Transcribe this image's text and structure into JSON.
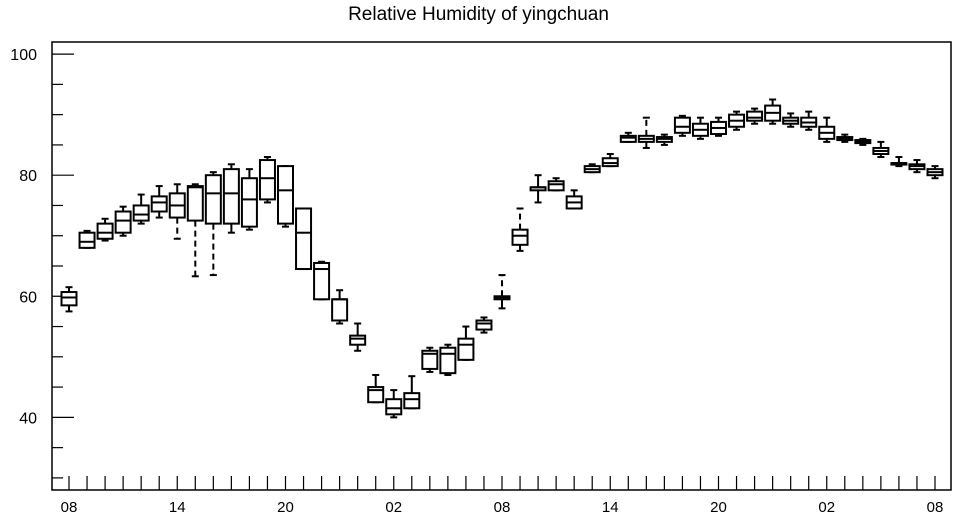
{
  "chart_data": {
    "type": "boxplot",
    "title": "Relative Humidity of yingchuan",
    "xlabel": "",
    "ylabel": "",
    "ylim": [
      28,
      102
    ],
    "y_ticks": [
      40,
      60,
      80,
      100
    ],
    "x_tick_labels": [
      "08",
      "14",
      "20",
      "02",
      "08",
      "14",
      "20",
      "02",
      "08"
    ],
    "grid": false,
    "series": [
      {
        "values": [
          [
            57.5,
            58.5,
            59.8,
            60.7,
            61.5
          ],
          [
            68,
            68,
            69,
            70.5,
            70.8
          ],
          [
            69.2,
            69.5,
            70.5,
            72,
            72.8
          ],
          [
            70,
            70.5,
            72.5,
            74,
            74.8
          ],
          [
            72,
            72.5,
            73.5,
            75,
            76.8
          ],
          [
            73,
            74,
            75.5,
            76.5,
            78.2
          ],
          [
            69.5,
            73,
            75,
            77,
            78.5
          ],
          [
            63.3,
            72.5,
            78,
            78.2,
            78.5
          ],
          [
            63.5,
            72,
            77,
            80,
            80.5
          ],
          [
            70.5,
            72,
            77,
            81,
            81.8
          ],
          [
            71,
            71.5,
            76,
            79.5,
            81
          ],
          [
            75.5,
            76,
            79.5,
            82.5,
            83
          ],
          [
            71.5,
            72,
            77.5,
            81.5,
            81.5
          ],
          [
            64.5,
            64.5,
            70.5,
            74.5,
            74.5
          ],
          [
            59.5,
            59.5,
            64.5,
            65.5,
            65.7
          ],
          [
            55.5,
            56,
            59.5,
            59.5,
            61
          ],
          [
            51,
            52,
            53,
            53.5,
            55.5
          ],
          [
            42.5,
            42.5,
            44.5,
            45,
            47
          ],
          [
            40,
            40.5,
            41.5,
            43,
            44.5
          ],
          [
            41.5,
            41.5,
            43,
            44,
            46.8
          ],
          [
            47.5,
            48,
            50.5,
            51,
            51.5
          ],
          [
            47,
            47.3,
            50.5,
            51.5,
            52
          ],
          [
            49.5,
            49.5,
            52,
            53,
            55
          ],
          [
            54,
            54.5,
            55.5,
            56,
            56.5
          ],
          [
            58,
            59.5,
            59.8,
            60,
            63.5
          ],
          [
            67.5,
            68.5,
            70,
            71,
            74.5
          ],
          [
            75.5,
            77.5,
            78,
            78,
            80
          ],
          [
            77.5,
            77.5,
            78.5,
            79,
            79.5
          ],
          [
            74.5,
            74.5,
            75.5,
            76.5,
            77.5
          ],
          [
            80.5,
            80.5,
            81,
            81.5,
            81.8
          ],
          [
            81.5,
            81.5,
            82,
            82.8,
            83.5
          ],
          [
            85.5,
            85.5,
            86.2,
            86.5,
            87
          ],
          [
            84.5,
            85.5,
            86,
            86.5,
            89.5
          ],
          [
            85,
            85.5,
            86,
            86.3,
            86.7
          ],
          [
            86.5,
            87,
            88,
            89.5,
            89.8
          ],
          [
            86,
            86.5,
            87.5,
            88.5,
            89.5
          ],
          [
            86.5,
            86.8,
            87.8,
            88.8,
            89.5
          ],
          [
            87.5,
            88,
            89,
            90,
            90.5
          ],
          [
            88.5,
            89,
            89.5,
            90.5,
            91
          ],
          [
            88.5,
            89,
            90.3,
            91.5,
            92.5
          ],
          [
            88,
            88.5,
            89,
            89.5,
            90.2
          ],
          [
            87.5,
            88,
            88.7,
            89.5,
            90.5
          ],
          [
            85.5,
            86,
            87,
            88,
            89.5
          ],
          [
            85.5,
            85.8,
            86,
            86.3,
            86.7
          ],
          [
            85,
            85.3,
            85.5,
            85.8,
            86
          ],
          [
            83,
            83.5,
            84,
            84.5,
            85.5
          ],
          [
            81.5,
            81.8,
            82,
            82,
            83
          ],
          [
            80.5,
            81,
            81.5,
            81.8,
            82.5
          ],
          [
            79.5,
            80,
            80.5,
            81,
            81.5
          ]
        ]
      }
    ]
  }
}
